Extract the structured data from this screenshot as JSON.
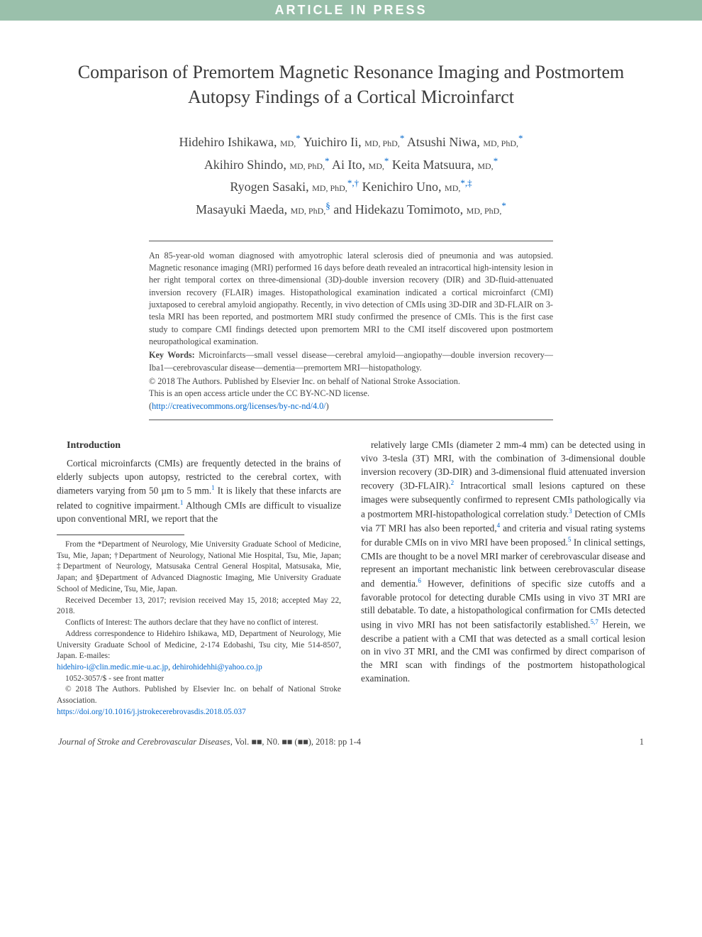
{
  "banner": "ARTICLE IN PRESS",
  "title": "Comparison of Premortem Magnetic Resonance Imaging and Postmortem Autopsy Findings of a Cortical Microinfarct",
  "authors": [
    {
      "name": "Hidehiro Ishikawa",
      "degree": "MD",
      "marks": "*",
      "mark_color": "#0066cc"
    },
    {
      "name": "Yuichiro Ii",
      "degree": "MD, PhD",
      "marks": "*",
      "mark_color": "#0066cc"
    },
    {
      "name": "Atsushi Niwa",
      "degree": "MD, PhD",
      "marks": "*",
      "mark_color": "#0066cc"
    },
    {
      "name": "Akihiro Shindo",
      "degree": "MD, PhD",
      "marks": "*",
      "mark_color": "#0066cc"
    },
    {
      "name": "Ai Ito",
      "degree": "MD",
      "marks": "*",
      "mark_color": "#0066cc"
    },
    {
      "name": "Keita Matsuura",
      "degree": "MD",
      "marks": "*",
      "mark_color": "#0066cc"
    },
    {
      "name": "Ryogen Sasaki",
      "degree": "MD, PhD",
      "marks": "*,†",
      "mark_color": "#0066cc"
    },
    {
      "name": "Kenichiro Uno",
      "degree": "MD",
      "marks": "*,‡",
      "mark_color": "#0066cc"
    },
    {
      "name": "Masayuki Maeda",
      "degree": "MD, PhD",
      "marks": "§",
      "mark_color": "#0066cc"
    },
    {
      "name": "Hidekazu Tomimoto",
      "degree": "MD, PhD",
      "marks": "*",
      "mark_color": "#0066cc"
    }
  ],
  "abstract": "An 85-year-old woman diagnosed with amyotrophic lateral sclerosis died of pneumonia and was autopsied. Magnetic resonance imaging (MRI) performed 16 days before death revealed an intracortical high-intensity lesion in her right temporal cortex on three-dimensional (3D)-double inversion recovery (DIR) and 3D-fluid-attenuated inversion recovery (FLAIR) images. Histopathological examination indicated a cortical microinfarct (CMI) juxtaposed to cerebral amyloid angiopathy. Recently, in vivo detection of CMIs using 3D-DIR and 3D-FLAIR on 3-tesla MRI has been reported, and postmortem MRI study confirmed the presence of CMIs. This is the first case study to compare CMI findings detected upon premortem MRI to the CMI itself discovered upon postmortem neuropathological examination.",
  "keywords_label": "Key Words:",
  "keywords": "Microinfarcts—small vessel disease—cerebral amyloid—angiopathy—double inversion recovery—Iba1—cerebrovascular disease—dementia—premortem MRI—histopathology.",
  "copyright_line1": "© 2018 The Authors. Published by Elsevier Inc. on behalf of National Stroke Association.",
  "copyright_line2": "This is an open access article under the CC BY-NC-ND license.",
  "cc_link": "http://creativecommons.org/licenses/by-nc-nd/4.0/",
  "intro_heading": "Introduction",
  "intro_left": "Cortical microinfarcts (CMIs) are frequently detected in the brains of elderly subjects upon autopsy, restricted to the cerebral cortex, with diameters varying from 50 µm to 5 mm.¹ It is likely that these infarcts are related to cognitive impairment.¹ Although CMIs are difficult to visualize upon conventional MRI, we report that the",
  "intro_right": "relatively large CMIs (diameter 2 mm-4 mm) can be detected using in vivo 3-tesla (3T) MRI, with the combination of 3-dimensional double inversion recovery (3D-DIR) and 3-dimensional fluid attenuated inversion recovery (3D-FLAIR).² Intracortical small lesions captured on these images were subsequently confirmed to represent CMIs pathologically via a postmortem MRI-histopathological correlation study.³ Detection of CMIs via 7T MRI has also been reported,⁴ and criteria and visual rating systems for durable CMIs on in vivo MRI have been proposed.⁵ In clinical settings, CMIs are thought to be a novel MRI marker of cerebrovascular disease and represent an important mechanistic link between cerebrovascular disease and dementia.⁶ However, definitions of specific size cutoffs and a favorable protocol for detecting durable CMIs using in vivo 3T MRI are still debatable. To date, a histopathological confirmation for CMIs detected using in vivo MRI has not been satisfactorily established.⁵,⁷ Herein, we describe a patient with a CMI that was detected as a small cortical lesion on in vivo 3T MRI, and the CMI was confirmed by direct comparison of the MRI scan with findings of the postmortem histopathological examination.",
  "footnotes": {
    "affiliations": "From the *Department of Neurology, Mie University Graduate School of Medicine, Tsu, Mie, Japan; †Department of Neurology, National Mie Hospital, Tsu, Mie, Japan; ‡Department of Neurology, Matsusaka Central General Hospital, Matsusaka, Mie, Japan; and §Department of Advanced Diagnostic Imaging, Mie University Graduate School of Medicine, Tsu, Mie, Japan.",
    "received": "Received December 13, 2017; revision received May 15, 2018; accepted May 22, 2018.",
    "conflicts": "Conflicts of Interest: The authors declare that they have no conflict of interest.",
    "correspondence": "Address correspondence to Hidehiro Ishikawa, MD, Department of Neurology, Mie University Graduate School of Medicine, 2-174 Edobashi, Tsu city, Mie 514-8507, Japan. E-mailes:",
    "emails": [
      "hidehiro-i@clin.medic.mie-u.ac.jp",
      "dehirohidehhi@yahoo.co.jp"
    ],
    "issn": "1052-3057/$ - see front matter",
    "pub": "© 2018 The Authors. Published by Elsevier Inc. on behalf of National Stroke Association.",
    "doi": "https://doi.org/10.1016/j.jstrokecerebrovasdis.2018.05.037"
  },
  "footer": {
    "journal": "Journal of Stroke and Cerebrovascular Diseases",
    "vol": "Vol. ■■, N0. ■■ (■■), 2018: pp 1-4",
    "page": "1"
  },
  "colors": {
    "banner_bg": "#9ac0ab",
    "banner_text": "#ffffff",
    "link": "#0066cc",
    "body_text": "#333333"
  }
}
